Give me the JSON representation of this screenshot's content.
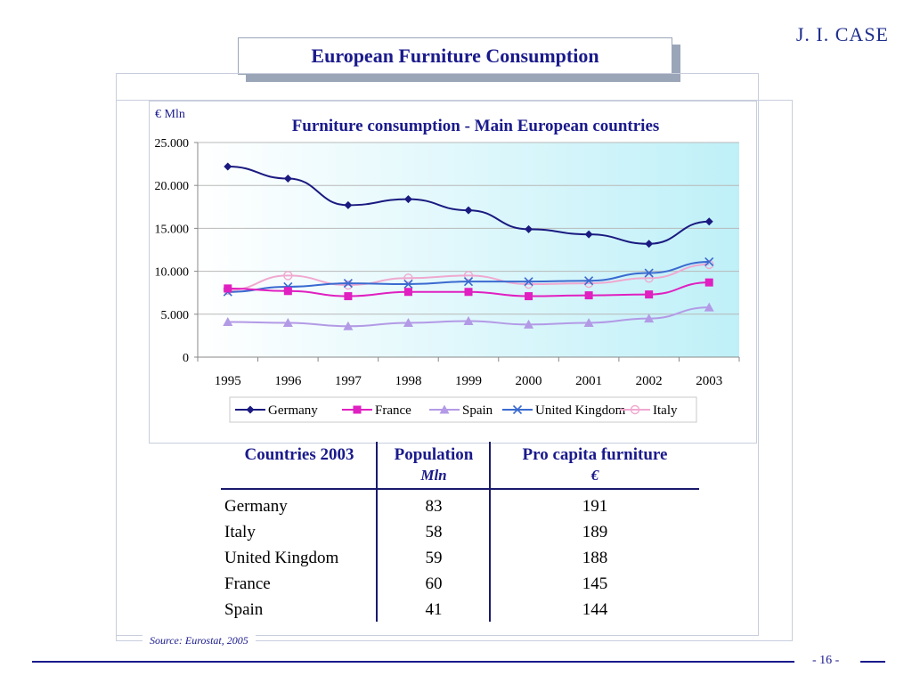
{
  "header": {
    "title": "European Furniture Consumption",
    "logo": "J. I. CASE"
  },
  "chart_data": {
    "type": "line",
    "title": "Furniture consumption - Main European countries",
    "ylabel": "€ Mln",
    "xlabel": "",
    "categories": [
      "1995",
      "1996",
      "1997",
      "1998",
      "1999",
      "2000",
      "2001",
      "2002",
      "2003"
    ],
    "ylim": [
      0,
      25000
    ],
    "yticks": [
      "0",
      "5.000",
      "10.000",
      "15.000",
      "20.000",
      "25.000"
    ],
    "grid": true,
    "legend": "bottom",
    "series": [
      {
        "name": "Germany",
        "color": "#1a1a80",
        "marker": "diamond",
        "values": [
          22200,
          20800,
          17700,
          18400,
          17100,
          14900,
          14300,
          13200,
          15800
        ]
      },
      {
        "name": "France",
        "color": "#e020c0",
        "marker": "square",
        "values": [
          8000,
          7700,
          7100,
          7600,
          7600,
          7100,
          7200,
          7300,
          8700
        ]
      },
      {
        "name": "Spain",
        "color": "#b39ae6",
        "marker": "triangle",
        "values": [
          4100,
          4000,
          3600,
          4000,
          4200,
          3800,
          4000,
          4500,
          5800
        ]
      },
      {
        "name": "United Kingdom",
        "color": "#3a6ad0",
        "marker": "x",
        "values": [
          7600,
          8200,
          8600,
          8500,
          8800,
          8800,
          8900,
          9800,
          11100
        ]
      },
      {
        "name": "Italy",
        "color": "#f0a8d0",
        "marker": "circle",
        "values": [
          7800,
          9500,
          8400,
          9200,
          9500,
          8500,
          8600,
          9200,
          10800
        ]
      }
    ]
  },
  "table": {
    "headers": [
      "Countries 2003",
      "Population",
      "Pro capita furniture"
    ],
    "subheaders": [
      "",
      "Mln",
      "€"
    ],
    "rows": [
      [
        "Germany",
        "83",
        "191"
      ],
      [
        "Italy",
        "58",
        "189"
      ],
      [
        "United Kingdom",
        "59",
        "188"
      ],
      [
        "France",
        "60",
        "145"
      ],
      [
        "Spain",
        "41",
        "144"
      ]
    ]
  },
  "source": "Source: Eurostat, 2005",
  "page_number": "- 16 -"
}
